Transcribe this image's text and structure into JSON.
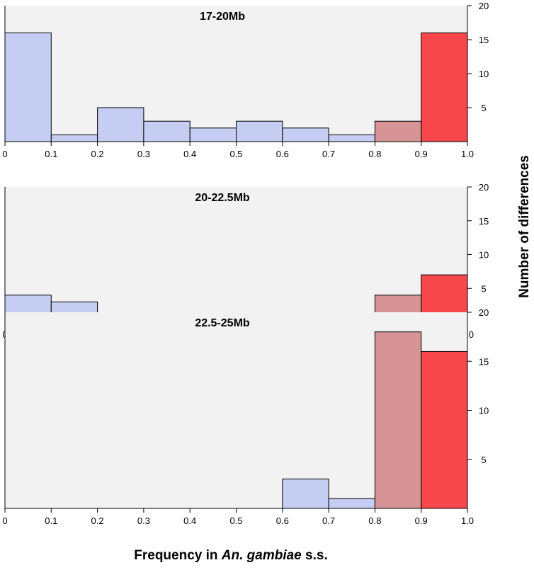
{
  "chart_data": {
    "type": "bar",
    "xlabel_parts": [
      {
        "text": "Frequency in ",
        "italic": false
      },
      {
        "text": "An. gambiae",
        "italic": true
      },
      {
        "text": " s.s.",
        "italic": false
      }
    ],
    "ylabel": "Number of differences",
    "x_ticks": [
      "0",
      "0.1",
      "0.2",
      "0.3",
      "0.4",
      "0.5",
      "0.6",
      "0.7",
      "0.8",
      "0.9",
      "1.0"
    ],
    "y_ticks": [
      5,
      10,
      15,
      20
    ],
    "y_tick_labels": [
      "5",
      "10",
      "15",
      "20"
    ],
    "xlim": [
      0,
      1
    ],
    "ylim": [
      0,
      20
    ],
    "bin_edges": [
      0,
      0.1,
      0.2,
      0.3,
      0.4,
      0.5,
      0.6,
      0.7,
      0.8,
      0.9,
      1.0
    ],
    "colors": {
      "low": "#c5cdf2",
      "mid": "#d69496",
      "high": "#f7474b",
      "panel_bg": "#f2f2f2",
      "stroke": "#000000"
    },
    "bin_color_keys": [
      "low",
      "low",
      "low",
      "low",
      "low",
      "low",
      "low",
      "low",
      "mid",
      "high"
    ],
    "panels": [
      {
        "title": "17-20Mb",
        "values": [
          16,
          1,
          5,
          3,
          2,
          3,
          2,
          1,
          3,
          16
        ]
      },
      {
        "title": "20-22.5Mb",
        "values": [
          4,
          3,
          1,
          0,
          0,
          1,
          0,
          1,
          4,
          7
        ]
      },
      {
        "title": "22.5-25Mb",
        "values": [
          0,
          0,
          0,
          0,
          0,
          0,
          3,
          1,
          18,
          16
        ]
      }
    ]
  }
}
